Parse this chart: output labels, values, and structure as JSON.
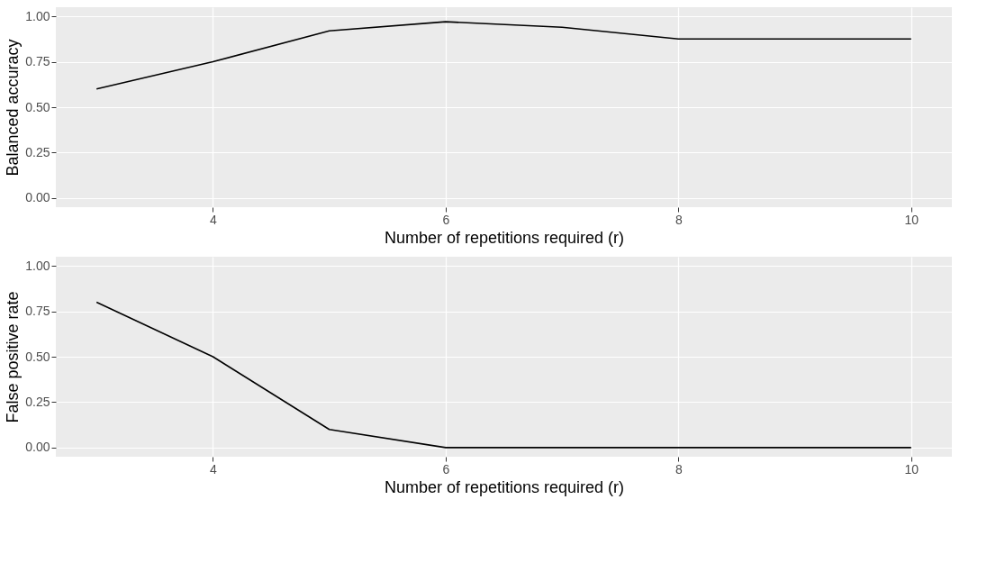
{
  "chart_data": [
    {
      "type": "line",
      "xlabel": "Number of repetitions required (r)",
      "ylabel": "Balanced accuracy",
      "x": [
        3,
        4,
        5,
        6,
        7,
        8,
        9,
        10
      ],
      "series": [
        {
          "color": "#000000",
          "values": [
            0.6,
            0.75,
            0.92,
            0.97,
            0.94,
            0.875,
            0.875,
            0.875
          ]
        }
      ],
      "xlim": [
        2.65,
        10.35
      ],
      "xticks": [
        4,
        6,
        8,
        10
      ],
      "ylim": [
        -0.05,
        1.05
      ],
      "yticks": [
        {
          "value": 0,
          "label": "0.00"
        },
        {
          "value": 0.25,
          "label": "0.25"
        },
        {
          "value": 0.5,
          "label": "0.50"
        },
        {
          "value": 0.75,
          "label": "0.75"
        },
        {
          "value": 1,
          "label": "1.00"
        }
      ],
      "grid": true
    },
    {
      "type": "line",
      "xlabel": "Number of repetitions required (r)",
      "ylabel": "False positive rate",
      "x": [
        3,
        4,
        5,
        6,
        7,
        8,
        9,
        10
      ],
      "series": [
        {
          "color": "#000000",
          "values": [
            0.8,
            0.5,
            0.1,
            0,
            0,
            0,
            0,
            0
          ]
        }
      ],
      "xlim": [
        2.65,
        10.35
      ],
      "xticks": [
        4,
        6,
        8,
        10
      ],
      "ylim": [
        -0.05,
        1.05
      ],
      "yticks": [
        {
          "value": 0,
          "label": "0.00"
        },
        {
          "value": 0.25,
          "label": "0.25"
        },
        {
          "value": 0.5,
          "label": "0.50"
        },
        {
          "value": 0.75,
          "label": "0.75"
        },
        {
          "value": 1,
          "label": "1.00"
        }
      ],
      "grid": true
    }
  ]
}
